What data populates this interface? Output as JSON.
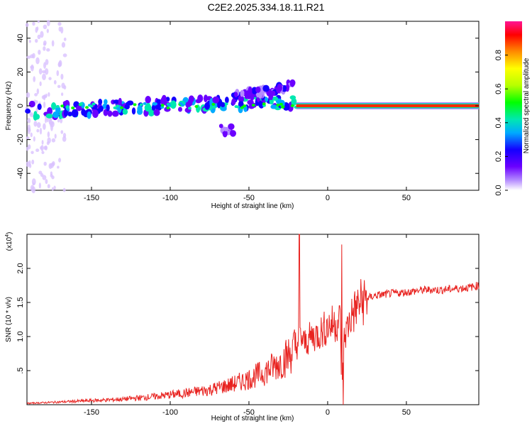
{
  "title": "C2E2.2025.334.18.11.R21",
  "chart_data": [
    {
      "type": "heatmap",
      "xlabel": "Height of straight line (km)",
      "ylabel": "Frequency (Hz)",
      "xlim": [
        -191,
        96
      ],
      "ylim": [
        -50,
        50
      ],
      "xticks": [
        -150,
        -100,
        -50,
        0,
        50
      ],
      "yticks": [
        -40,
        -20,
        0,
        20,
        40
      ],
      "colorbar": {
        "label": "Normalized spectral amplitude",
        "range": [
          0,
          1
        ],
        "ticks": [
          0.0,
          0.2,
          0.4,
          0.6,
          0.8
        ]
      },
      "features": [
        {
          "name": "main-ridge",
          "x_start": -191,
          "x_end": -20,
          "frequency_start": -3,
          "frequency_end": 3,
          "amplitude": 0.35
        },
        {
          "name": "rising-branch",
          "x_start": -60,
          "x_end": -22,
          "frequency_start": 5,
          "frequency_end": 12,
          "amplitude": 0.2
        },
        {
          "name": "lower-blob",
          "x_start": -68,
          "x_end": -60,
          "frequency": -14,
          "amplitude": 0.15
        },
        {
          "name": "converged-line",
          "x_start": -20,
          "x_end": 96,
          "frequency": 0,
          "amplitude": 0.85
        }
      ]
    },
    {
      "type": "line",
      "xlabel": "Height of straight line (km)",
      "ylabel": "SNR (10 * v/v)",
      "yscale_label": "(x10",
      "yscale_exponent": "4",
      "xlim": [
        -191,
        96
      ],
      "ylim": [
        0,
        2.5
      ],
      "xticks": [
        -150,
        -100,
        -50,
        0,
        50
      ],
      "yticks": [
        0.5,
        1.0,
        1.5,
        2.0
      ],
      "series": [
        {
          "name": "SNR",
          "color": "#e8221f",
          "x": [
            -191,
            -170,
            -150,
            -130,
            -110,
            -90,
            -75,
            -60,
            -50,
            -40,
            -30,
            -25,
            -20,
            -17,
            -15,
            -10,
            -5,
            0,
            5,
            8,
            9,
            10,
            12,
            15,
            20,
            25,
            30,
            40,
            50,
            60,
            68,
            70,
            80,
            90,
            96
          ],
          "y": [
            0.02,
            0.04,
            0.06,
            0.08,
            0.12,
            0.17,
            0.22,
            0.3,
            0.38,
            0.48,
            0.62,
            0.72,
            0.85,
            1.0,
            0.9,
            1.0,
            1.05,
            1.15,
            1.2,
            1.25,
            0.1,
            0.9,
            1.1,
            1.3,
            1.48,
            1.56,
            1.6,
            1.63,
            1.65,
            1.68,
            1.69,
            1.68,
            1.7,
            1.72,
            1.75
          ]
        }
      ],
      "spikes": [
        {
          "x": -18,
          "y": 2.5
        },
        {
          "x": 9,
          "y": 2.35
        },
        {
          "x": 10,
          "y": 0.0
        }
      ]
    }
  ]
}
